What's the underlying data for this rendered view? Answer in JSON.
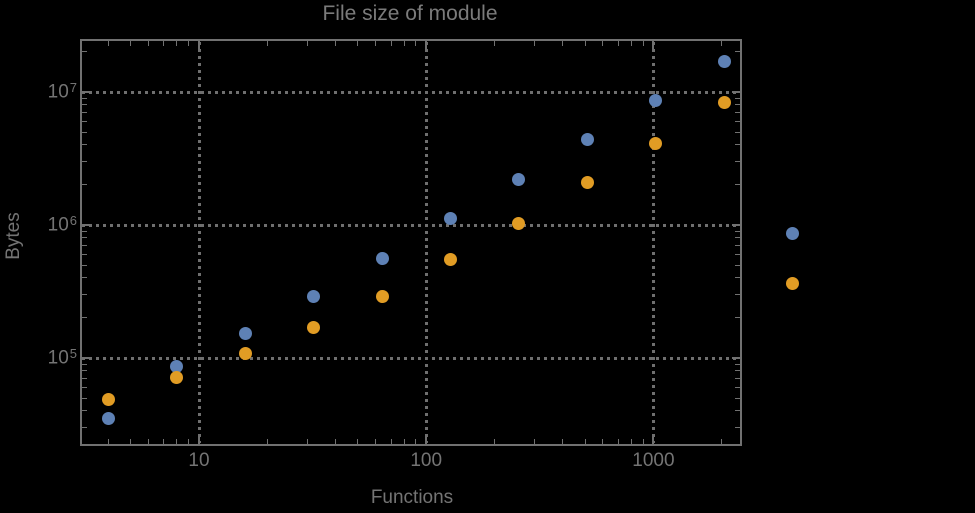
{
  "title": "File size of module",
  "x_axis": {
    "label": "Functions",
    "scale": "log",
    "major_ticks": [
      {
        "value": 10,
        "label": "10"
      },
      {
        "value": 100,
        "label": "100"
      },
      {
        "value": 1000,
        "label": "1000"
      }
    ]
  },
  "y_axis": {
    "label": "Bytes",
    "scale": "log",
    "major_ticks": [
      {
        "value": 100000,
        "label_base": "10",
        "label_exponent": "5"
      },
      {
        "value": 1000000,
        "label_base": "10",
        "label_exponent": "6"
      },
      {
        "value": 10000000,
        "label_base": "10",
        "label_exponent": "7"
      }
    ]
  },
  "colors": {
    "background": "#000000",
    "frame": "#717171",
    "grid": "#6f6f6f",
    "text": "#747474",
    "series_blue": "#5e81b5",
    "series_orange": "#e19c24"
  },
  "chart_data": {
    "type": "scatter",
    "title": "File size of module",
    "xlabel": "Functions",
    "ylabel": "Bytes",
    "xscale": "log",
    "yscale": "log",
    "xlim": [
      3.1,
      2350
    ],
    "ylim": [
      22500,
      24500000
    ],
    "grid": true,
    "legend": "none",
    "x": [
      4,
      8,
      16,
      32,
      64,
      128,
      256,
      512,
      1024,
      2048,
      4096
    ],
    "series": [
      {
        "name": "series-1-blue",
        "color": "#5e81b5",
        "values": [
          35000,
          87000,
          154000,
          290000,
          560000,
          1110000,
          2180000,
          4360000,
          8600000,
          17100000,
          856000
        ]
      },
      {
        "name": "series-2-orange",
        "color": "#e19c24",
        "values": [
          49000,
          71000,
          109000,
          170000,
          290000,
          550000,
          1030000,
          2100000,
          4100000,
          8300000,
          366000
        ]
      }
    ]
  }
}
